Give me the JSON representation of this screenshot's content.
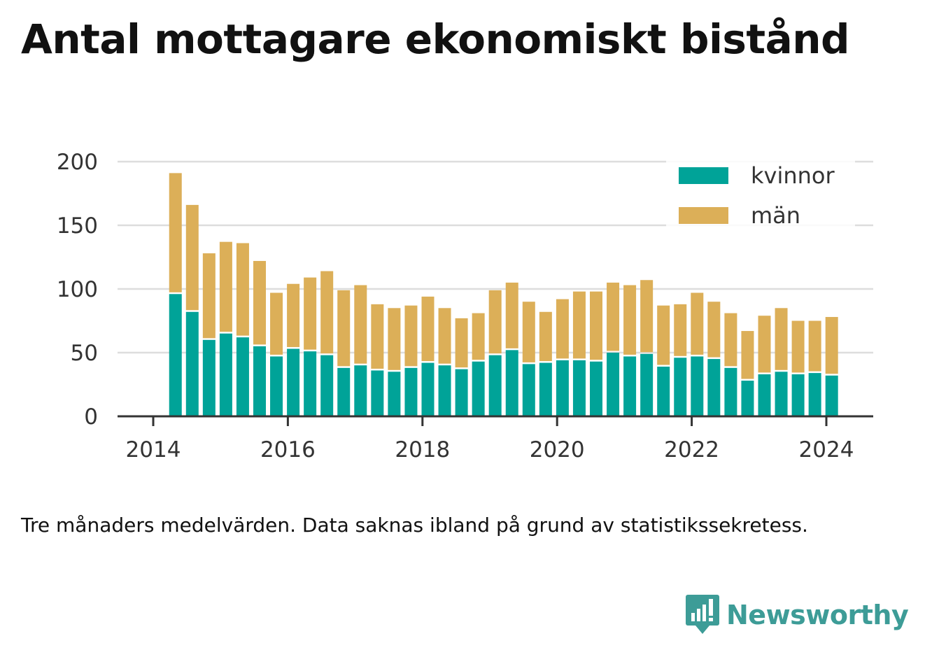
{
  "title": "Antal mottagare ekonomiskt bistånd",
  "note": "Tre månaders medelvärden. Data saknas ibland på grund av statistikssekretess.",
  "brand": {
    "name": "Newsworthy",
    "icon": "newsworthy-logo-icon",
    "color": "#3d9c97"
  },
  "colors": {
    "kvinnor": "#00a398",
    "man": "#dcaf58",
    "axis": "#333333",
    "grid": "#dddddd",
    "text": "#333333"
  },
  "chart_data": {
    "type": "bar",
    "stacked": true,
    "ylim": [
      0,
      200
    ],
    "yticks": [
      0,
      50,
      100,
      150,
      200
    ],
    "xticks": [
      "2014",
      "2016",
      "2018",
      "2020",
      "2022",
      "2024"
    ],
    "xlim": [
      2014.0,
      2024.7
    ],
    "grid": true,
    "legend_position": "top-right",
    "x": [
      2014.33,
      2014.58,
      2014.83,
      2015.08,
      2015.33,
      2015.58,
      2015.83,
      2016.08,
      2016.33,
      2016.58,
      2016.83,
      2017.08,
      2017.33,
      2017.58,
      2017.83,
      2018.08,
      2018.33,
      2018.58,
      2018.83,
      2019.08,
      2019.33,
      2019.58,
      2019.83,
      2020.08,
      2020.33,
      2020.58,
      2020.83,
      2021.08,
      2021.33,
      2021.58,
      2021.83,
      2022.08,
      2022.33,
      2022.58,
      2022.83,
      2023.08,
      2023.33,
      2023.58,
      2023.83,
      2024.08
    ],
    "series": [
      {
        "name": "kvinnor",
        "values": [
          96,
          82,
          60,
          65,
          62,
          55,
          47,
          53,
          51,
          48,
          38,
          40,
          36,
          35,
          38,
          42,
          40,
          37,
          43,
          48,
          52,
          41,
          42,
          44,
          44,
          43,
          50,
          47,
          49,
          39,
          46,
          47,
          45,
          38,
          28,
          33,
          35,
          33,
          34,
          32
        ]
      },
      {
        "name": "män",
        "values": [
          95,
          84,
          68,
          72,
          74,
          67,
          50,
          51,
          58,
          66,
          61,
          63,
          52,
          50,
          49,
          52,
          45,
          40,
          38,
          51,
          53,
          49,
          40,
          48,
          54,
          55,
          55,
          56,
          58,
          48,
          42,
          50,
          45,
          43,
          39,
          46,
          50,
          42,
          41,
          46
        ]
      }
    ]
  }
}
